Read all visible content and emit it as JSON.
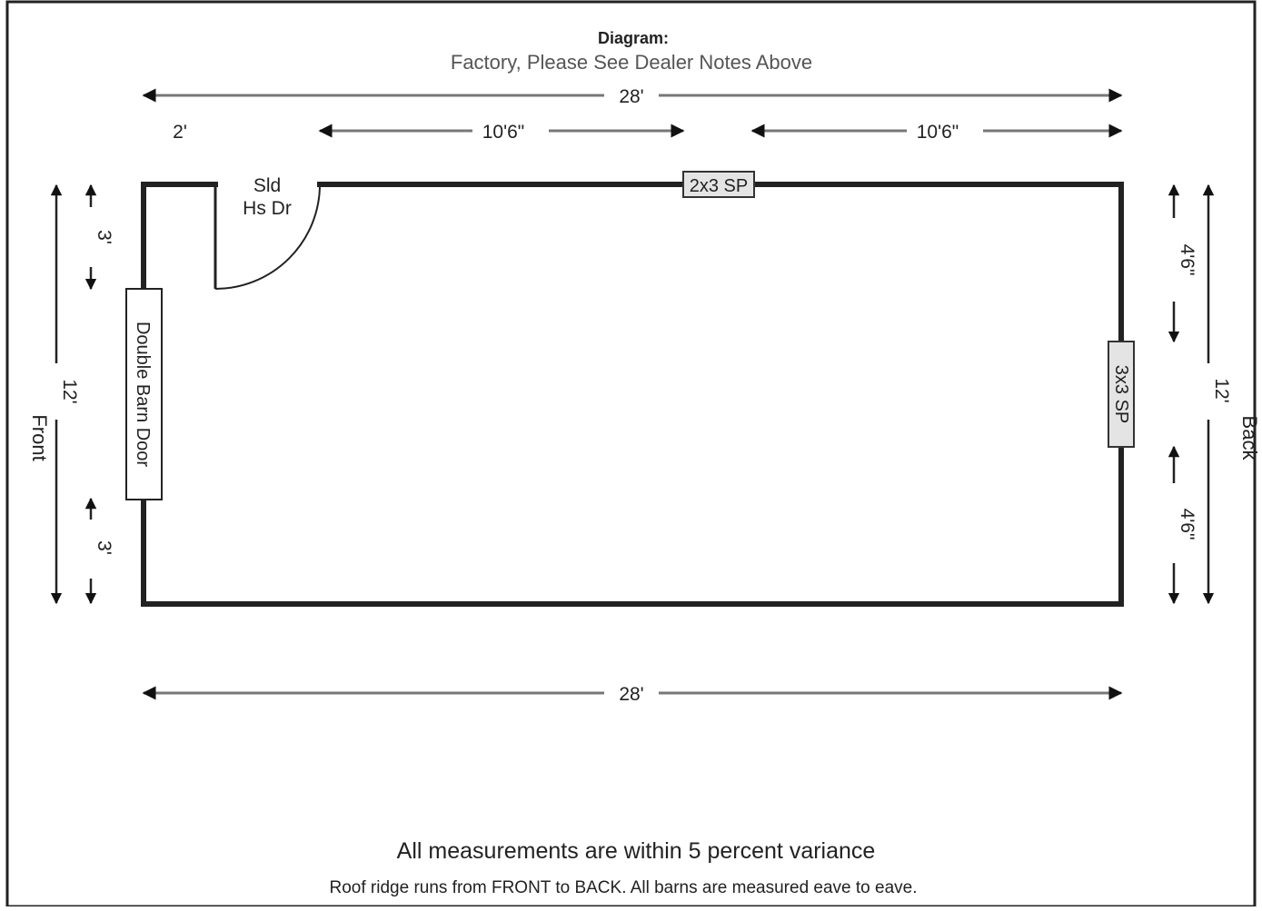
{
  "header": {
    "title": "Diagram:",
    "subtitle": "Factory,  Please See Dealer Notes Above"
  },
  "dimensions": {
    "top_overall": "28'",
    "front_offset": "2'",
    "top_segment_1": "10'6\"",
    "top_segment_2": "10'6\"",
    "bottom_overall": "28'",
    "front_height": "12'",
    "front_upper": "3'",
    "front_lower": "3'",
    "back_height": "12'",
    "back_upper": "4'6\"",
    "back_lower": "4'6\""
  },
  "sides": {
    "front": "Front",
    "back": "Back"
  },
  "openings": {
    "side_door_line1": "Sld",
    "side_door_line2": "Hs Dr",
    "front_door": "Double Barn Door",
    "top_window": "2x3 SP",
    "back_window": "3x3 SP"
  },
  "notes": {
    "variance": "All measurements are within 5 percent variance",
    "roof": "Roof ridge runs from FRONT to BACK. All barns are measured eave to eave."
  }
}
